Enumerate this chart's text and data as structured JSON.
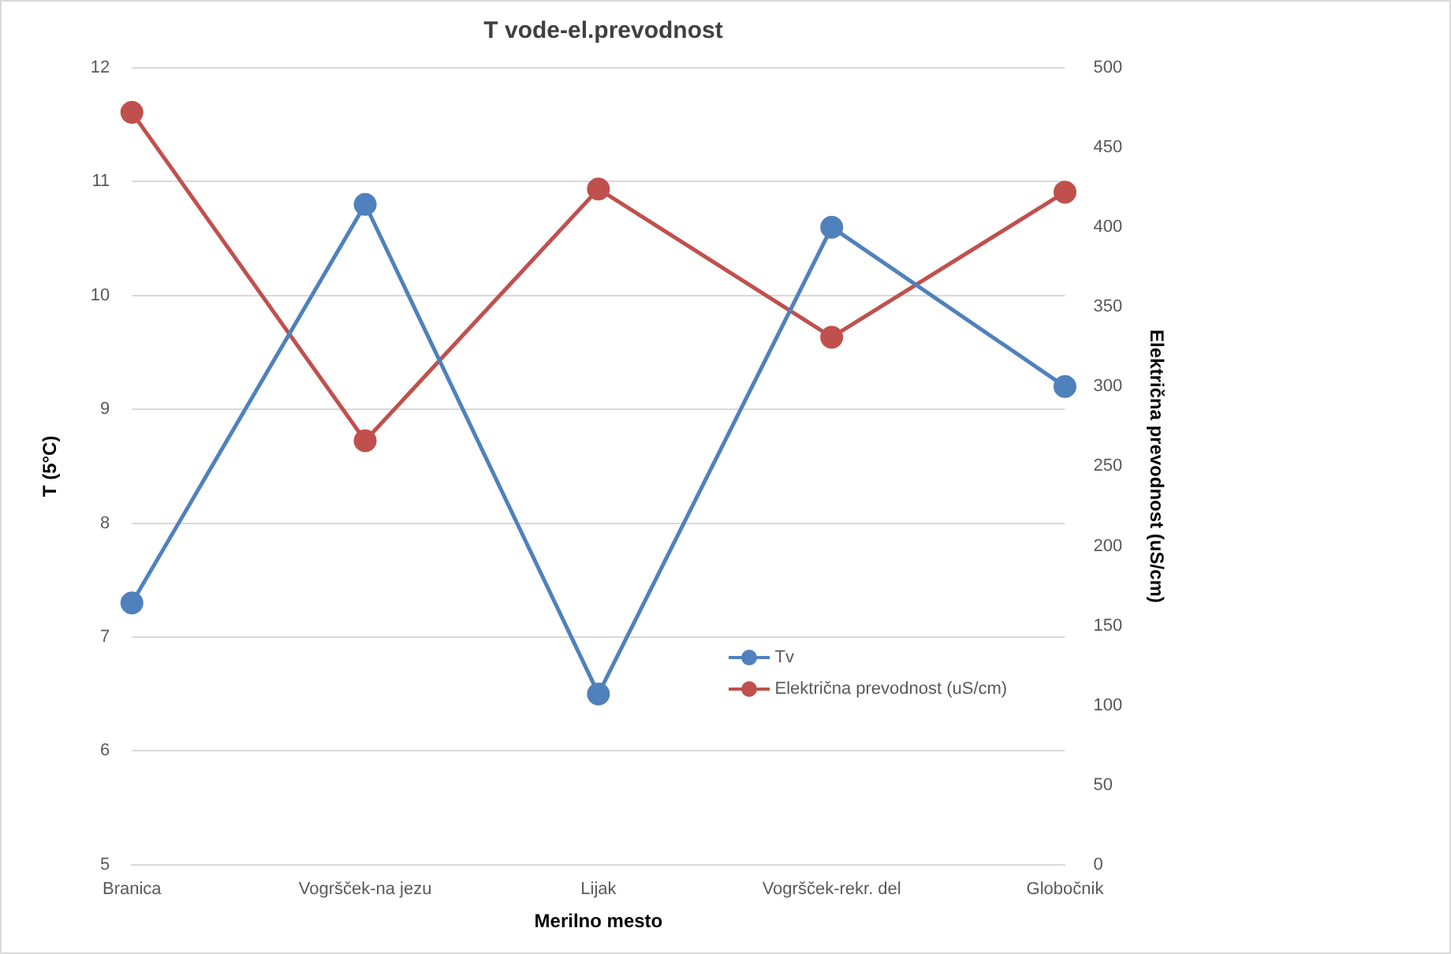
{
  "chart_data": {
    "type": "line",
    "title": "T vode-el.prevodnost",
    "xlabel": "Merilno mesto",
    "ylabel": "T (5°C)",
    "y2label": "Električna prevodnost (uS/cm)",
    "categories": [
      "Branica",
      "Vogršček-na jezu",
      "Lijak",
      "Vogršček-rekr. del",
      "Globočnik"
    ],
    "series": [
      {
        "name": "Tv",
        "color": "#4f81bd",
        "values": [
          7.3,
          10.8,
          6.5,
          10.6,
          9.2
        ]
      },
      {
        "name": "Električna prevodnost (uS/cm)",
        "color": "#c0504d",
        "axis": "y2",
        "values": [
          472,
          266,
          424,
          331,
          422
        ]
      }
    ],
    "ylim": [
      5,
      12
    ],
    "yticks": [
      5,
      6,
      7,
      8,
      9,
      10,
      11,
      12
    ],
    "y2lim": [
      0,
      500
    ],
    "y2ticks": [
      0,
      50,
      100,
      150,
      200,
      250,
      300,
      350,
      400,
      450,
      500
    ],
    "grid": "y",
    "legend": "bottom right",
    "marker": "circle",
    "line_style": "solid"
  }
}
